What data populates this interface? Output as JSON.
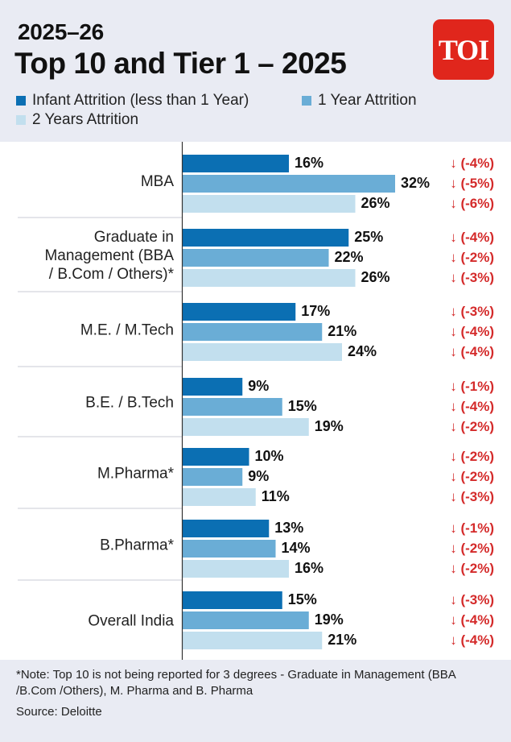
{
  "header": {
    "kicker": "2025–26",
    "title": "Top 10 and Tier 1 – 2025",
    "logo_text": "TOI"
  },
  "colors": {
    "logo": "#e0261c",
    "change": "#d42a2a",
    "series": [
      "#0b6fb3",
      "#6aadd6",
      "#c2dfee"
    ]
  },
  "chart_data": {
    "type": "bar",
    "orientation": "horizontal",
    "categories": [
      "MBA",
      "Graduate in Management (BBA / B.Com / Others)*",
      "M.E. / M.Tech",
      "B.E. / B.Tech",
      "M.Pharma*",
      "B.Pharma*",
      "Overall India"
    ],
    "category_lines": [
      [
        "MBA"
      ],
      [
        "Graduate in",
        "Management (BBA",
        "/ B.Com / Others)*"
      ],
      [
        "M.E. / M.Tech"
      ],
      [
        "B.E. / B.Tech"
      ],
      [
        "M.Pharma*"
      ],
      [
        "B.Pharma*"
      ],
      [
        "Overall India"
      ]
    ],
    "series": [
      {
        "name": "Infant Attrition (less than 1 Year)",
        "values": [
          16,
          25,
          17,
          9,
          10,
          13,
          15
        ],
        "changes": [
          "(-4%)",
          "(-4%)",
          "(-3%)",
          "(-1%)",
          "(-2%)",
          "(-1%)",
          "(-3%)"
        ]
      },
      {
        "name": "1 Year Attrition",
        "values": [
          32,
          22,
          21,
          15,
          9,
          14,
          19
        ],
        "changes": [
          "(-5%)",
          "(-2%)",
          "(-4%)",
          "(-4%)",
          "(-2%)",
          "(-2%)",
          "(-4%)"
        ]
      },
      {
        "name": "2 Years Attrition",
        "values": [
          26,
          26,
          24,
          19,
          11,
          16,
          21
        ],
        "changes": [
          "(-6%)",
          "(-3%)",
          "(-4%)",
          "(-2%)",
          "(-3%)",
          "(-2%)",
          "(-4%)"
        ]
      }
    ],
    "value_suffix": "%",
    "change_arrow": "↓",
    "legend": "top",
    "grid": false
  },
  "footer": {
    "note": "*Note: Top 10 is not being reported for 3 degrees - Graduate in Management (BBA /B.Com /Others), M. Pharma and B. Pharma",
    "source": "Source:  Deloitte"
  }
}
